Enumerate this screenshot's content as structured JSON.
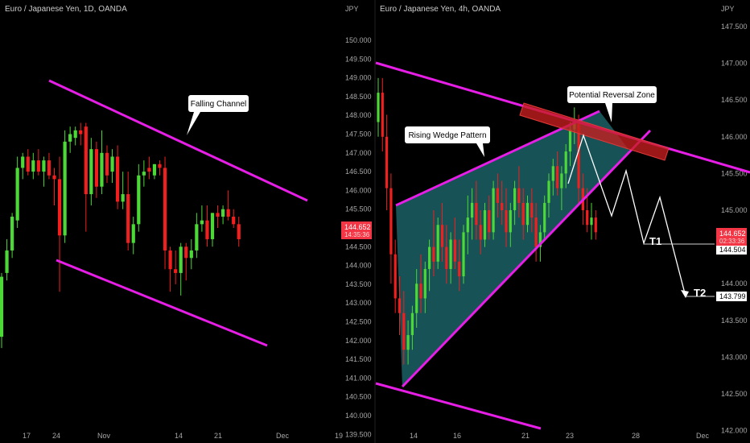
{
  "colors": {
    "background": "#000000",
    "up": "#4cd836",
    "down": "#f21f1f",
    "trendline": "#e61ee6",
    "wedge_fill": "#1f6e74",
    "zone": "#c81e1e",
    "axis_text": "#a6a6a6",
    "price_tag": "#f23645"
  },
  "chart_data": [
    {
      "type": "candlestick",
      "title": "Euro / Japanese Yen, 1D, OANDA",
      "currency": "JPY",
      "y_ticks": [
        "150.000",
        "149.500",
        "149.000",
        "148.500",
        "148.000",
        "147.500",
        "147.000",
        "146.500",
        "146.000",
        "145.500",
        "145.000",
        "144.500",
        "144.000",
        "143.500",
        "143.000",
        "142.500",
        "142.000",
        "141.500",
        "141.000",
        "140.500",
        "140.000",
        "139.500"
      ],
      "ylim": [
        139.2,
        150.6
      ],
      "x_ticks": [
        "17",
        "24",
        "Nov",
        "14",
        "21",
        "Dec",
        "19"
      ],
      "last_price": "144.652",
      "countdown": "14:35:36",
      "annotations": [
        {
          "label": "Falling Channel"
        }
      ],
      "candles": [
        {
          "o": 142.1,
          "h": 143.8,
          "l": 141.8,
          "c": 143.7
        },
        {
          "o": 143.8,
          "h": 144.7,
          "l": 143.6,
          "c": 144.4
        },
        {
          "o": 144.4,
          "h": 145.4,
          "l": 144.2,
          "c": 145.3
        },
        {
          "o": 145.2,
          "h": 146.9,
          "l": 145.0,
          "c": 146.6
        },
        {
          "o": 146.6,
          "h": 147.0,
          "l": 146.3,
          "c": 146.9
        },
        {
          "o": 146.9,
          "h": 147.1,
          "l": 146.4,
          "c": 146.5
        },
        {
          "o": 146.5,
          "h": 147.0,
          "l": 146.3,
          "c": 146.8
        },
        {
          "o": 146.8,
          "h": 147.1,
          "l": 146.4,
          "c": 146.5
        },
        {
          "o": 146.5,
          "h": 146.9,
          "l": 146.1,
          "c": 146.8
        },
        {
          "o": 146.8,
          "h": 147.0,
          "l": 146.3,
          "c": 146.4
        },
        {
          "o": 146.4,
          "h": 146.6,
          "l": 145.6,
          "c": 146.3
        },
        {
          "o": 146.3,
          "h": 146.9,
          "l": 143.3,
          "c": 144.8
        },
        {
          "o": 144.8,
          "h": 147.6,
          "l": 144.6,
          "c": 147.3
        },
        {
          "o": 147.3,
          "h": 147.7,
          "l": 147.0,
          "c": 147.5
        },
        {
          "o": 147.4,
          "h": 147.7,
          "l": 147.2,
          "c": 147.6
        },
        {
          "o": 147.6,
          "h": 147.8,
          "l": 147.2,
          "c": 147.5
        },
        {
          "o": 147.7,
          "h": 147.8,
          "l": 144.9,
          "c": 145.9
        },
        {
          "o": 145.9,
          "h": 147.4,
          "l": 145.6,
          "c": 147.1
        },
        {
          "o": 147.1,
          "h": 147.3,
          "l": 145.8,
          "c": 146.1
        },
        {
          "o": 146.1,
          "h": 147.6,
          "l": 145.9,
          "c": 147.0
        },
        {
          "o": 147.0,
          "h": 147.2,
          "l": 146.2,
          "c": 146.4
        },
        {
          "o": 146.5,
          "h": 147.1,
          "l": 146.2,
          "c": 146.9
        },
        {
          "o": 146.9,
          "h": 147.2,
          "l": 145.5,
          "c": 145.7
        },
        {
          "o": 145.7,
          "h": 146.5,
          "l": 145.5,
          "c": 145.9
        },
        {
          "o": 145.9,
          "h": 146.5,
          "l": 144.4,
          "c": 144.6
        },
        {
          "o": 144.6,
          "h": 145.3,
          "l": 144.3,
          "c": 145.1
        },
        {
          "o": 145.1,
          "h": 146.7,
          "l": 144.9,
          "c": 146.4
        },
        {
          "o": 146.4,
          "h": 146.8,
          "l": 146.1,
          "c": 146.5
        },
        {
          "o": 146.6,
          "h": 146.9,
          "l": 146.3,
          "c": 146.5
        },
        {
          "o": 146.4,
          "h": 146.7,
          "l": 146.3,
          "c": 146.7
        },
        {
          "o": 146.7,
          "h": 146.8,
          "l": 146.4,
          "c": 146.6
        },
        {
          "o": 146.6,
          "h": 146.9,
          "l": 143.9,
          "c": 144.4
        },
        {
          "o": 144.4,
          "h": 144.5,
          "l": 143.3,
          "c": 143.9
        },
        {
          "o": 143.9,
          "h": 144.4,
          "l": 143.5,
          "c": 143.8
        },
        {
          "o": 143.8,
          "h": 144.6,
          "l": 143.2,
          "c": 144.5
        },
        {
          "o": 144.5,
          "h": 144.6,
          "l": 143.6,
          "c": 144.2
        },
        {
          "o": 144.2,
          "h": 144.7,
          "l": 143.9,
          "c": 144.4
        },
        {
          "o": 144.4,
          "h": 145.4,
          "l": 144.2,
          "c": 145.1
        },
        {
          "o": 145.1,
          "h": 145.6,
          "l": 144.9,
          "c": 145.2
        },
        {
          "o": 145.2,
          "h": 145.6,
          "l": 144.5,
          "c": 144.7
        },
        {
          "o": 144.7,
          "h": 145.4,
          "l": 144.5,
          "c": 145.4
        },
        {
          "o": 145.4,
          "h": 145.6,
          "l": 145.0,
          "c": 145.3
        },
        {
          "o": 145.3,
          "h": 145.6,
          "l": 145.1,
          "c": 145.5
        },
        {
          "o": 145.5,
          "h": 146.0,
          "l": 145.2,
          "c": 145.3
        },
        {
          "o": 145.3,
          "h": 145.5,
          "l": 145.0,
          "c": 145.1
        },
        {
          "o": 145.1,
          "h": 145.3,
          "l": 144.5,
          "c": 144.7
        }
      ]
    },
    {
      "type": "candlestick",
      "title": "Euro / Japanese Yen, 4h, OANDA",
      "currency": "JPY",
      "y_ticks": [
        "147.500",
        "147.000",
        "146.500",
        "146.000",
        "145.500",
        "145.000",
        "144.500",
        "144.000",
        "143.500",
        "143.000",
        "142.500",
        "142.000"
      ],
      "ylim": [
        142.0,
        148.0
      ],
      "x_ticks": [
        "14",
        "16",
        "21",
        "23",
        "28",
        "Dec"
      ],
      "last_price": "144.652",
      "countdown": "02:33:36",
      "levels": [
        {
          "label": "T1",
          "price": "144.504"
        },
        {
          "label": "T2",
          "price": "143.799"
        }
      ],
      "annotations": [
        {
          "label": "Rising Wedge Pattern"
        },
        {
          "label": "Potential Reversal Zone"
        }
      ],
      "candles": [
        {
          "o": 146.2,
          "h": 146.8,
          "l": 146.0,
          "c": 146.6
        },
        {
          "o": 146.6,
          "h": 146.8,
          "l": 145.8,
          "c": 146.0
        },
        {
          "o": 146.0,
          "h": 146.3,
          "l": 145.0,
          "c": 145.3
        },
        {
          "o": 145.3,
          "h": 145.5,
          "l": 144.0,
          "c": 144.4
        },
        {
          "o": 144.4,
          "h": 144.6,
          "l": 143.6,
          "c": 143.8
        },
        {
          "o": 143.8,
          "h": 144.1,
          "l": 143.3,
          "c": 143.6
        },
        {
          "o": 143.6,
          "h": 143.9,
          "l": 142.9,
          "c": 143.1
        },
        {
          "o": 143.1,
          "h": 143.5,
          "l": 142.9,
          "c": 143.3
        },
        {
          "o": 143.3,
          "h": 143.7,
          "l": 143.1,
          "c": 143.6
        },
        {
          "o": 143.6,
          "h": 144.2,
          "l": 143.4,
          "c": 144.0
        },
        {
          "o": 144.0,
          "h": 144.4,
          "l": 143.6,
          "c": 143.8
        },
        {
          "o": 143.8,
          "h": 144.3,
          "l": 143.6,
          "c": 144.2
        },
        {
          "o": 144.2,
          "h": 144.6,
          "l": 143.9,
          "c": 144.5
        },
        {
          "o": 144.5,
          "h": 145.0,
          "l": 144.1,
          "c": 144.3
        },
        {
          "o": 144.3,
          "h": 144.9,
          "l": 144.2,
          "c": 144.8
        },
        {
          "o": 144.8,
          "h": 145.1,
          "l": 144.3,
          "c": 144.5
        },
        {
          "o": 144.5,
          "h": 144.8,
          "l": 144.0,
          "c": 144.2
        },
        {
          "o": 144.2,
          "h": 144.7,
          "l": 144.0,
          "c": 144.6
        },
        {
          "o": 144.6,
          "h": 144.9,
          "l": 144.2,
          "c": 144.3
        },
        {
          "o": 144.3,
          "h": 144.6,
          "l": 143.9,
          "c": 144.1
        },
        {
          "o": 144.1,
          "h": 144.8,
          "l": 144.0,
          "c": 144.7
        },
        {
          "o": 144.7,
          "h": 145.2,
          "l": 144.4,
          "c": 144.9
        },
        {
          "o": 144.9,
          "h": 145.3,
          "l": 144.6,
          "c": 145.1
        },
        {
          "o": 145.1,
          "h": 145.4,
          "l": 144.6,
          "c": 144.8
        },
        {
          "o": 144.8,
          "h": 145.0,
          "l": 144.4,
          "c": 144.6
        },
        {
          "o": 144.6,
          "h": 145.1,
          "l": 144.5,
          "c": 145.0
        },
        {
          "o": 145.0,
          "h": 145.2,
          "l": 144.6,
          "c": 144.7
        },
        {
          "o": 144.7,
          "h": 145.4,
          "l": 144.6,
          "c": 145.3
        },
        {
          "o": 145.3,
          "h": 145.5,
          "l": 144.9,
          "c": 145.1
        },
        {
          "o": 145.1,
          "h": 145.4,
          "l": 144.8,
          "c": 145.0
        },
        {
          "o": 145.0,
          "h": 145.3,
          "l": 144.5,
          "c": 144.7
        },
        {
          "o": 144.7,
          "h": 145.1,
          "l": 144.5,
          "c": 145.0
        },
        {
          "o": 145.0,
          "h": 145.4,
          "l": 144.8,
          "c": 145.3
        },
        {
          "o": 145.3,
          "h": 145.6,
          "l": 144.9,
          "c": 145.1
        },
        {
          "o": 145.1,
          "h": 145.3,
          "l": 144.6,
          "c": 144.8
        },
        {
          "o": 144.8,
          "h": 145.2,
          "l": 144.7,
          "c": 145.1
        },
        {
          "o": 145.1,
          "h": 145.3,
          "l": 144.7,
          "c": 144.9
        },
        {
          "o": 144.9,
          "h": 145.1,
          "l": 144.3,
          "c": 144.5
        },
        {
          "o": 144.5,
          "h": 144.8,
          "l": 144.3,
          "c": 144.7
        },
        {
          "o": 144.7,
          "h": 145.2,
          "l": 144.6,
          "c": 145.1
        },
        {
          "o": 145.1,
          "h": 145.5,
          "l": 144.9,
          "c": 145.4
        },
        {
          "o": 145.4,
          "h": 145.7,
          "l": 145.2,
          "c": 145.6
        },
        {
          "o": 145.6,
          "h": 145.8,
          "l": 145.2,
          "c": 145.3
        },
        {
          "o": 145.3,
          "h": 145.6,
          "l": 145.0,
          "c": 145.5
        },
        {
          "o": 145.5,
          "h": 145.9,
          "l": 145.3,
          "c": 145.8
        },
        {
          "o": 145.8,
          "h": 146.2,
          "l": 145.6,
          "c": 146.1
        },
        {
          "o": 146.1,
          "h": 146.4,
          "l": 145.9,
          "c": 146.2
        },
        {
          "o": 146.2,
          "h": 146.3,
          "l": 145.1,
          "c": 145.3
        },
        {
          "o": 145.3,
          "h": 145.5,
          "l": 144.8,
          "c": 145.0
        },
        {
          "o": 145.0,
          "h": 145.3,
          "l": 144.7,
          "c": 144.8
        },
        {
          "o": 144.8,
          "h": 145.1,
          "l": 144.6,
          "c": 144.9
        },
        {
          "o": 144.9,
          "h": 145.0,
          "l": 144.6,
          "c": 144.7
        }
      ]
    }
  ]
}
